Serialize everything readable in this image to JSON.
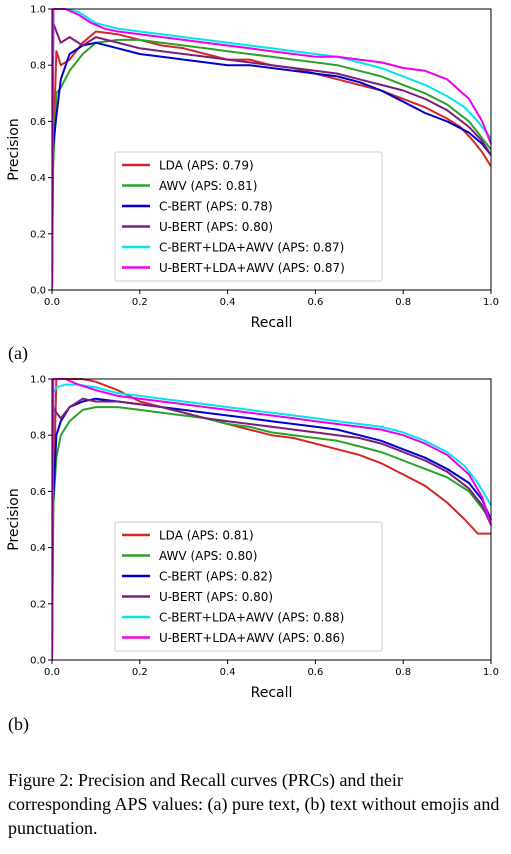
{
  "chart_data": [
    {
      "type": "line",
      "panel": "(a)",
      "xlabel": "Recall",
      "ylabel": "Precision",
      "xlim": [
        0,
        1
      ],
      "ylim": [
        0,
        1
      ],
      "xticks": [
        "0.0",
        "0.2",
        "0.4",
        "0.6",
        "0.8",
        "1.0"
      ],
      "yticks": [
        "0.0",
        "0.2",
        "0.4",
        "0.6",
        "0.8",
        "1.0"
      ],
      "grid": false,
      "legend_position": "lower-center",
      "series": [
        {
          "name": "LDA (APS: 0.79)",
          "color": "#d62728",
          "x": [
            0,
            0.003,
            0.01,
            0.02,
            0.04,
            0.07,
            0.1,
            0.15,
            0.2,
            0.25,
            0.3,
            0.35,
            0.4,
            0.45,
            0.5,
            0.55,
            0.6,
            0.65,
            0.7,
            0.75,
            0.8,
            0.85,
            0.9,
            0.93,
            0.96,
            0.98,
            1.0
          ],
          "y": [
            0,
            0.5,
            0.85,
            0.8,
            0.82,
            0.88,
            0.92,
            0.91,
            0.89,
            0.87,
            0.86,
            0.84,
            0.82,
            0.82,
            0.8,
            0.79,
            0.77,
            0.75,
            0.73,
            0.71,
            0.68,
            0.65,
            0.61,
            0.58,
            0.53,
            0.49,
            0.44
          ]
        },
        {
          "name": "AWV (APS: 0.81)",
          "color": "#2ca02c",
          "x": [
            0,
            0.002,
            0.01,
            0.02,
            0.04,
            0.07,
            0.1,
            0.15,
            0.2,
            0.25,
            0.3,
            0.35,
            0.4,
            0.45,
            0.5,
            0.55,
            0.6,
            0.65,
            0.7,
            0.75,
            0.8,
            0.85,
            0.9,
            0.95,
            0.98,
            1.0
          ],
          "y": [
            0,
            0.42,
            0.7,
            0.72,
            0.78,
            0.84,
            0.88,
            0.89,
            0.89,
            0.88,
            0.87,
            0.86,
            0.85,
            0.84,
            0.83,
            0.82,
            0.81,
            0.8,
            0.78,
            0.76,
            0.73,
            0.7,
            0.66,
            0.6,
            0.54,
            0.5
          ]
        },
        {
          "name": "C-BERT (APS: 0.78)",
          "color": "#0000cc",
          "x": [
            0,
            0.002,
            0.01,
            0.02,
            0.04,
            0.07,
            0.1,
            0.15,
            0.2,
            0.25,
            0.3,
            0.35,
            0.4,
            0.45,
            0.5,
            0.55,
            0.6,
            0.65,
            0.7,
            0.75,
            0.8,
            0.85,
            0.9,
            0.95,
            0.98,
            1.0
          ],
          "y": [
            0,
            0.5,
            0.62,
            0.75,
            0.84,
            0.87,
            0.88,
            0.86,
            0.84,
            0.83,
            0.82,
            0.81,
            0.8,
            0.8,
            0.79,
            0.78,
            0.77,
            0.76,
            0.74,
            0.71,
            0.67,
            0.63,
            0.6,
            0.56,
            0.52,
            0.48
          ]
        },
        {
          "name": "U-BERT (APS: 0.80)",
          "color": "#7a1f7a",
          "x": [
            0,
            0.003,
            0.01,
            0.02,
            0.04,
            0.07,
            0.1,
            0.15,
            0.2,
            0.25,
            0.3,
            0.35,
            0.4,
            0.45,
            0.5,
            0.55,
            0.6,
            0.65,
            0.7,
            0.75,
            0.8,
            0.85,
            0.9,
            0.95,
            0.98,
            1.0
          ],
          "y": [
            0,
            0.95,
            0.92,
            0.88,
            0.9,
            0.87,
            0.9,
            0.88,
            0.86,
            0.85,
            0.84,
            0.83,
            0.82,
            0.81,
            0.8,
            0.79,
            0.78,
            0.77,
            0.75,
            0.73,
            0.71,
            0.68,
            0.64,
            0.58,
            0.53,
            0.48
          ]
        },
        {
          "name": "C-BERT+LDA+AWV (APS: 0.87)",
          "color": "#00e5ee",
          "x": [
            0,
            0.003,
            0.01,
            0.03,
            0.06,
            0.1,
            0.15,
            0.2,
            0.25,
            0.3,
            0.35,
            0.4,
            0.45,
            0.5,
            0.55,
            0.6,
            0.65,
            0.7,
            0.75,
            0.8,
            0.85,
            0.9,
            0.94,
            0.97,
            1.0
          ],
          "y": [
            0,
            1.0,
            1.0,
            1.0,
            0.99,
            0.95,
            0.93,
            0.92,
            0.91,
            0.9,
            0.89,
            0.88,
            0.87,
            0.86,
            0.85,
            0.84,
            0.83,
            0.81,
            0.79,
            0.76,
            0.73,
            0.69,
            0.65,
            0.6,
            0.54
          ]
        },
        {
          "name": "U-BERT+LDA+AWV (APS: 0.87)",
          "color": "#ee00ee",
          "x": [
            0,
            0.003,
            0.01,
            0.03,
            0.06,
            0.09,
            0.12,
            0.15,
            0.2,
            0.25,
            0.3,
            0.35,
            0.4,
            0.45,
            0.5,
            0.55,
            0.6,
            0.65,
            0.7,
            0.75,
            0.8,
            0.85,
            0.9,
            0.95,
            0.98,
            1.0
          ],
          "y": [
            0,
            1.0,
            1.0,
            1.0,
            0.98,
            0.95,
            0.93,
            0.92,
            0.91,
            0.9,
            0.89,
            0.88,
            0.87,
            0.86,
            0.85,
            0.84,
            0.83,
            0.83,
            0.82,
            0.81,
            0.79,
            0.78,
            0.75,
            0.68,
            0.6,
            0.52
          ]
        }
      ]
    },
    {
      "type": "line",
      "panel": "(b)",
      "xlabel": "Recall",
      "ylabel": "Precision",
      "xlim": [
        0,
        1
      ],
      "ylim": [
        0,
        1
      ],
      "xticks": [
        "0.0",
        "0.2",
        "0.4",
        "0.6",
        "0.8",
        "1.0"
      ],
      "yticks": [
        "0.0",
        "0.2",
        "0.4",
        "0.6",
        "0.8",
        "1.0"
      ],
      "grid": false,
      "legend_position": "lower-center",
      "series": [
        {
          "name": "LDA (APS: 0.81)",
          "color": "#d62728",
          "x": [
            0,
            0.003,
            0.01,
            0.02,
            0.04,
            0.07,
            0.1,
            0.15,
            0.2,
            0.25,
            0.3,
            0.35,
            0.4,
            0.45,
            0.5,
            0.55,
            0.6,
            0.65,
            0.7,
            0.75,
            0.8,
            0.85,
            0.9,
            0.94,
            0.97,
            1.0
          ],
          "y": [
            0,
            0.55,
            1.0,
            1.0,
            1.0,
            1.0,
            0.99,
            0.96,
            0.92,
            0.9,
            0.88,
            0.86,
            0.84,
            0.82,
            0.8,
            0.79,
            0.77,
            0.75,
            0.73,
            0.7,
            0.66,
            0.62,
            0.56,
            0.5,
            0.45,
            0.45
          ]
        },
        {
          "name": "AWV (APS: 0.80)",
          "color": "#2ca02c",
          "x": [
            0,
            0.003,
            0.01,
            0.02,
            0.04,
            0.07,
            0.1,
            0.15,
            0.2,
            0.25,
            0.3,
            0.35,
            0.4,
            0.45,
            0.5,
            0.55,
            0.6,
            0.65,
            0.7,
            0.75,
            0.8,
            0.85,
            0.9,
            0.95,
            0.98,
            1.0
          ],
          "y": [
            0,
            0.55,
            0.72,
            0.8,
            0.85,
            0.89,
            0.9,
            0.9,
            0.89,
            0.88,
            0.87,
            0.86,
            0.84,
            0.83,
            0.81,
            0.8,
            0.79,
            0.78,
            0.76,
            0.74,
            0.71,
            0.68,
            0.65,
            0.6,
            0.54,
            0.5
          ]
        },
        {
          "name": "C-BERT (APS: 0.82)",
          "color": "#0000cc",
          "x": [
            0,
            0.002,
            0.01,
            0.02,
            0.04,
            0.07,
            0.1,
            0.15,
            0.2,
            0.25,
            0.3,
            0.35,
            0.4,
            0.45,
            0.5,
            0.55,
            0.6,
            0.65,
            0.7,
            0.75,
            0.8,
            0.85,
            0.9,
            0.95,
            0.98,
            1.0
          ],
          "y": [
            0,
            0.55,
            0.8,
            0.85,
            0.9,
            0.92,
            0.93,
            0.92,
            0.91,
            0.9,
            0.89,
            0.88,
            0.87,
            0.86,
            0.85,
            0.84,
            0.83,
            0.82,
            0.8,
            0.78,
            0.75,
            0.72,
            0.68,
            0.63,
            0.57,
            0.5
          ]
        },
        {
          "name": "U-BERT (APS: 0.80)",
          "color": "#7a1f7a",
          "x": [
            0,
            0.003,
            0.01,
            0.02,
            0.04,
            0.07,
            0.1,
            0.15,
            0.2,
            0.25,
            0.3,
            0.35,
            0.4,
            0.45,
            0.5,
            0.55,
            0.6,
            0.65,
            0.7,
            0.75,
            0.8,
            0.85,
            0.9,
            0.95,
            0.98,
            1.0
          ],
          "y": [
            0,
            0.9,
            0.88,
            0.86,
            0.9,
            0.93,
            0.92,
            0.92,
            0.91,
            0.9,
            0.88,
            0.86,
            0.85,
            0.84,
            0.83,
            0.82,
            0.81,
            0.8,
            0.79,
            0.77,
            0.74,
            0.71,
            0.67,
            0.61,
            0.55,
            0.48
          ]
        },
        {
          "name": "C-BERT+LDA+AWV (APS: 0.88)",
          "color": "#00e5ee",
          "x": [
            0,
            0.003,
            0.01,
            0.03,
            0.06,
            0.1,
            0.15,
            0.2,
            0.25,
            0.3,
            0.35,
            0.4,
            0.45,
            0.5,
            0.55,
            0.6,
            0.65,
            0.7,
            0.75,
            0.8,
            0.85,
            0.9,
            0.94,
            0.97,
            1.0
          ],
          "y": [
            0,
            0.95,
            0.97,
            0.98,
            0.98,
            0.97,
            0.95,
            0.94,
            0.93,
            0.92,
            0.91,
            0.9,
            0.89,
            0.88,
            0.87,
            0.86,
            0.85,
            0.84,
            0.83,
            0.81,
            0.78,
            0.74,
            0.69,
            0.63,
            0.55
          ]
        },
        {
          "name": "U-BERT+LDA+AWV (APS: 0.86)",
          "color": "#ee00ee",
          "x": [
            0,
            0.003,
            0.01,
            0.03,
            0.06,
            0.1,
            0.15,
            0.2,
            0.25,
            0.3,
            0.35,
            0.4,
            0.45,
            0.5,
            0.55,
            0.6,
            0.65,
            0.7,
            0.75,
            0.8,
            0.85,
            0.9,
            0.95,
            0.98,
            1.0
          ],
          "y": [
            0,
            1.0,
            1.0,
            1.0,
            0.98,
            0.96,
            0.94,
            0.93,
            0.92,
            0.91,
            0.9,
            0.89,
            0.88,
            0.87,
            0.86,
            0.85,
            0.84,
            0.83,
            0.82,
            0.8,
            0.77,
            0.73,
            0.66,
            0.58,
            0.48
          ]
        }
      ]
    }
  ],
  "panel_labels": [
    "(a)",
    "(b)"
  ],
  "caption": "Figure 2: Precision and Recall curves (PRCs) and their corresponding APS values: (a) pure text, (b) text without emojis and punctuation."
}
